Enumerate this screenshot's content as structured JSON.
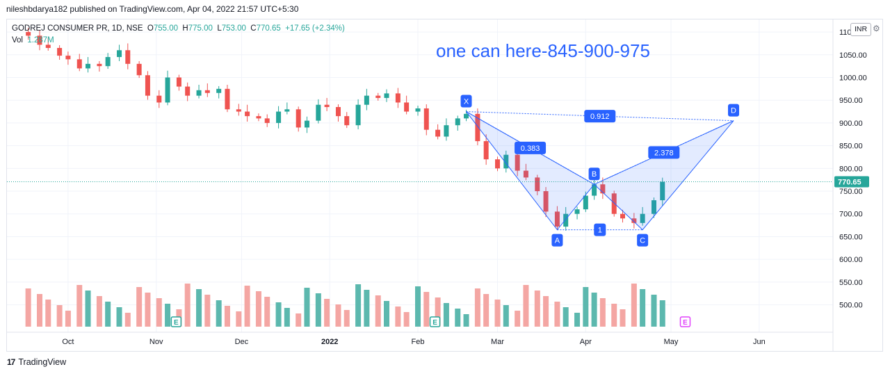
{
  "header": {
    "published": "nileshbdarya182 published on TradingView.com, Apr 04, 2022 21:57 UTC+5:30"
  },
  "legend": {
    "symbol": "GODREJ CONSUMER PR, 1D, NSE",
    "open_label": "O",
    "open": "755.00",
    "high_label": "H",
    "high": "775.00",
    "low_label": "L",
    "low": "753.00",
    "close_label": "C",
    "close": "770.65",
    "change": "+17.65 (+2.34%)",
    "volume_label": "Vol",
    "volume": "1.287M"
  },
  "currency": "INR",
  "annotation": "one can here-845-900-975",
  "footer": {
    "brand": "TradingView"
  },
  "colors": {
    "up": "#26a69a",
    "down": "#ef5350",
    "volume_up": "#5cb8ae",
    "volume_down": "#f4a6a3",
    "harmonic": "#2962ff",
    "price_line": "#26a69a"
  },
  "chart_data": {
    "type": "candlestick",
    "title": "GODREJ CONSUMER PR, 1D, NSE",
    "price_axis": {
      "ticks": [
        500,
        550,
        600,
        650,
        700,
        750,
        800,
        850,
        900,
        950,
        1000,
        1050,
        1100
      ],
      "labels": [
        "500.00",
        "550.00",
        "600.00",
        "650.00",
        "700.00",
        "750.00",
        "800.00",
        "850.00",
        "900.00",
        "950.00",
        "1000.00",
        "1050.00",
        "1100.00"
      ],
      "range": [
        455,
        1120
      ]
    },
    "time_axis": {
      "labels": [
        "Oct",
        "Nov",
        "Dec",
        "2022",
        "Feb",
        "Mar",
        "Apr",
        "May",
        "Jun"
      ],
      "dates": [
        "2021-10-01",
        "2021-11-01",
        "2021-12-01",
        "2022-01-01",
        "2022-02-01",
        "2022-03-01",
        "2022-04-01",
        "2022-05-01",
        "2022-06-01"
      ]
    },
    "last_price": 770.65,
    "last_price_label": "770.65",
    "close_series": [
      {
        "date": "2021-09-13",
        "close": 1100
      },
      {
        "date": "2021-09-17",
        "close": 1092
      },
      {
        "date": "2021-09-21",
        "close": 1072
      },
      {
        "date": "2021-09-24",
        "close": 1065
      },
      {
        "date": "2021-09-28",
        "close": 1048
      },
      {
        "date": "2021-10-01",
        "close": 1040
      },
      {
        "date": "2021-10-05",
        "close": 1020
      },
      {
        "date": "2021-10-08",
        "close": 1030
      },
      {
        "date": "2021-10-12",
        "close": 1025
      },
      {
        "date": "2021-10-15",
        "close": 1045
      },
      {
        "date": "2021-10-19",
        "close": 1060
      },
      {
        "date": "2021-10-22",
        "close": 1030
      },
      {
        "date": "2021-10-26",
        "close": 1005
      },
      {
        "date": "2021-10-29",
        "close": 960
      },
      {
        "date": "2021-11-02",
        "close": 945
      },
      {
        "date": "2021-11-05",
        "close": 1000
      },
      {
        "date": "2021-11-09",
        "close": 980
      },
      {
        "date": "2021-11-12",
        "close": 960
      },
      {
        "date": "2021-11-16",
        "close": 972
      },
      {
        "date": "2021-11-19",
        "close": 966
      },
      {
        "date": "2021-11-23",
        "close": 975
      },
      {
        "date": "2021-11-26",
        "close": 930
      },
      {
        "date": "2021-11-30",
        "close": 925
      },
      {
        "date": "2021-12-03",
        "close": 915
      },
      {
        "date": "2021-12-07",
        "close": 910
      },
      {
        "date": "2021-12-10",
        "close": 900
      },
      {
        "date": "2021-12-14",
        "close": 925
      },
      {
        "date": "2021-12-17",
        "close": 930
      },
      {
        "date": "2021-12-21",
        "close": 890
      },
      {
        "date": "2021-12-24",
        "close": 905
      },
      {
        "date": "2021-12-28",
        "close": 940
      },
      {
        "date": "2021-12-31",
        "close": 935
      },
      {
        "date": "2022-01-04",
        "close": 915
      },
      {
        "date": "2022-01-07",
        "close": 895
      },
      {
        "date": "2022-01-11",
        "close": 940
      },
      {
        "date": "2022-01-14",
        "close": 960
      },
      {
        "date": "2022-01-18",
        "close": 955
      },
      {
        "date": "2022-01-21",
        "close": 965
      },
      {
        "date": "2022-01-25",
        "close": 945
      },
      {
        "date": "2022-01-28",
        "close": 925
      },
      {
        "date": "2022-02-01",
        "close": 932
      },
      {
        "date": "2022-02-04",
        "close": 885
      },
      {
        "date": "2022-02-08",
        "close": 870
      },
      {
        "date": "2022-02-11",
        "close": 895
      },
      {
        "date": "2022-02-15",
        "close": 910
      },
      {
        "date": "2022-02-18",
        "close": 920
      },
      {
        "date": "2022-02-22",
        "close": 860
      },
      {
        "date": "2022-02-25",
        "close": 820
      },
      {
        "date": "2022-03-01",
        "close": 800
      },
      {
        "date": "2022-03-04",
        "close": 830
      },
      {
        "date": "2022-03-08",
        "close": 795
      },
      {
        "date": "2022-03-11",
        "close": 780
      },
      {
        "date": "2022-03-15",
        "close": 750
      },
      {
        "date": "2022-03-18",
        "close": 705
      },
      {
        "date": "2022-03-22",
        "close": 672
      },
      {
        "date": "2022-03-25",
        "close": 700
      },
      {
        "date": "2022-03-29",
        "close": 710
      },
      {
        "date": "2022-04-01",
        "close": 740
      },
      {
        "date": "2022-04-04",
        "close": 765
      },
      {
        "date": "2022-04-07",
        "close": 745
      },
      {
        "date": "2022-04-11",
        "close": 700
      },
      {
        "date": "2022-04-14",
        "close": 690
      },
      {
        "date": "2022-04-18",
        "close": 680
      },
      {
        "date": "2022-04-21",
        "close": 700
      },
      {
        "date": "2022-04-25",
        "close": 730
      },
      {
        "date": "2022-04-28",
        "close": 770.65
      }
    ],
    "harmonic_pattern": {
      "points": [
        {
          "label": "X",
          "date": "2022-02-18",
          "price": 925
        },
        {
          "label": "A",
          "date": "2022-03-22",
          "price": 665
        },
        {
          "label": "B",
          "date": "2022-04-04",
          "price": 765
        },
        {
          "label": "C",
          "date": "2022-04-21",
          "price": 665
        },
        {
          "label": "D",
          "date": "2022-05-23",
          "price": 905
        }
      ],
      "ratios": [
        {
          "value": "0.383",
          "between": "X-A-B"
        },
        {
          "value": "1",
          "between": "A-C"
        },
        {
          "value": "2.378",
          "between": "B-C-D"
        },
        {
          "value": "0.912",
          "between": "X-D"
        }
      ]
    },
    "events": [
      {
        "label": "E",
        "date": "2021-11-08",
        "type": "earnings"
      },
      {
        "label": "E",
        "date": "2022-02-07",
        "type": "earnings"
      },
      {
        "label": "E",
        "date": "2022-05-06",
        "type": "earnings-upcoming"
      }
    ],
    "volume_legend": "1.287M"
  }
}
